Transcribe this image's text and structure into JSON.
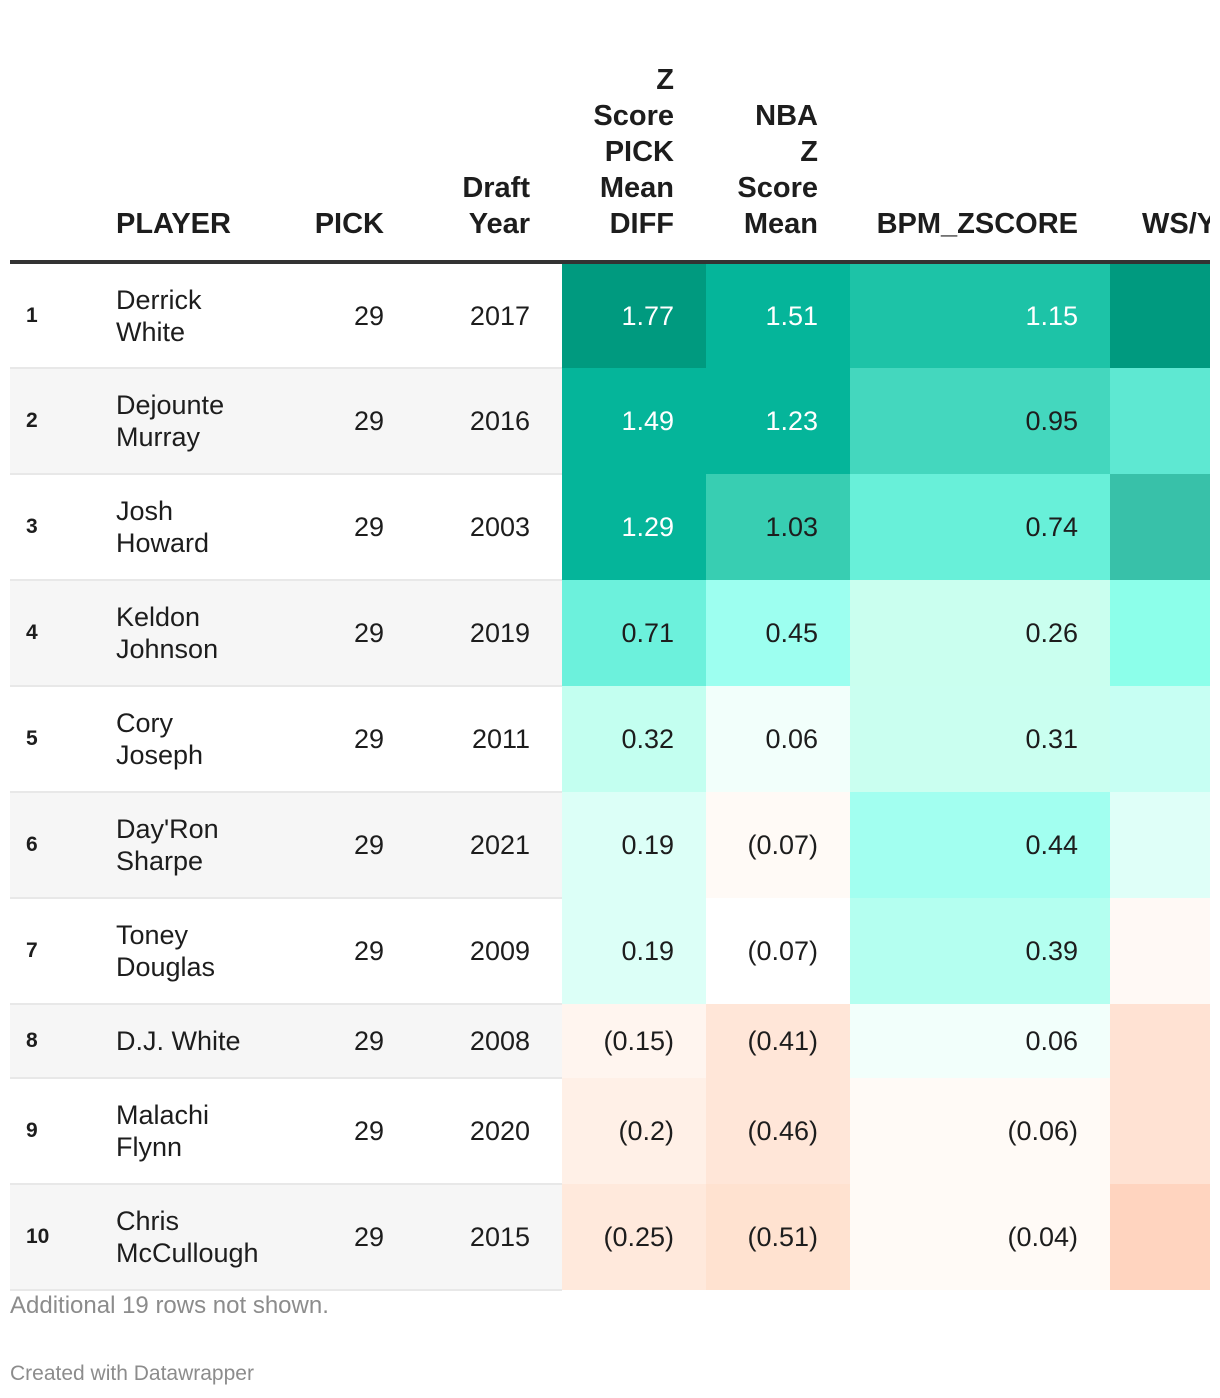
{
  "columns": {
    "rank": "",
    "player": "PLAYER",
    "pick": "PICK",
    "year": "Draft Year",
    "z_diff": "Z Score PICK Mean DIFF",
    "nba_z": "NBA Z Score Mean",
    "bpm": "BPM_ZSCORE",
    "ws": "WS/Y"
  },
  "rows": [
    {
      "rank": "1",
      "player": "Derrick White",
      "pick": "29",
      "year": "2017",
      "z_diff": "1.77",
      "nba_z": "1.51",
      "bpm": "1.15"
    },
    {
      "rank": "2",
      "player": "Dejounte Murray",
      "pick": "29",
      "year": "2016",
      "z_diff": "1.49",
      "nba_z": "1.23",
      "bpm": "0.95"
    },
    {
      "rank": "3",
      "player": "Josh Howard",
      "pick": "29",
      "year": "2003",
      "z_diff": "1.29",
      "nba_z": "1.03",
      "bpm": "0.74"
    },
    {
      "rank": "4",
      "player": "Keldon Johnson",
      "pick": "29",
      "year": "2019",
      "z_diff": "0.71",
      "nba_z": "0.45",
      "bpm": "0.26"
    },
    {
      "rank": "5",
      "player": "Cory Joseph",
      "pick": "29",
      "year": "2011",
      "z_diff": "0.32",
      "nba_z": "0.06",
      "bpm": "0.31"
    },
    {
      "rank": "6",
      "player": "Day'Ron Sharpe",
      "pick": "29",
      "year": "2021",
      "z_diff": "0.19",
      "nba_z": "(0.07)",
      "bpm": "0.44"
    },
    {
      "rank": "7",
      "player": "Toney Douglas",
      "pick": "29",
      "year": "2009",
      "z_diff": "0.19",
      "nba_z": "(0.07)",
      "bpm": "0.39"
    },
    {
      "rank": "8",
      "player": "D.J. White",
      "pick": "29",
      "year": "2008",
      "z_diff": "(0.15)",
      "nba_z": "(0.41)",
      "bpm": "0.06"
    },
    {
      "rank": "9",
      "player": "Malachi Flynn",
      "pick": "29",
      "year": "2020",
      "z_diff": "(0.2)",
      "nba_z": "(0.46)",
      "bpm": "(0.06)"
    },
    {
      "rank": "10",
      "player": "Chris McCullough",
      "pick": "29",
      "year": "2015",
      "z_diff": "(0.25)",
      "nba_z": "(0.51)",
      "bpm": "(0.04)"
    }
  ],
  "heat_colors": {
    "z_diff": [
      "#009a7f",
      "#05b59a",
      "#05b59a",
      "#6cf1dc",
      "#c3fff0",
      "#dcfff7",
      "#dcfff7",
      "#fff5ef",
      "#fff0e7",
      "#ffe9dc"
    ],
    "nba_z": [
      "#05b59a",
      "#05b59a",
      "#38ceb2",
      "#9dfff0",
      "#f2fffb",
      "#fffaf6",
      "#ffffff",
      "#ffe6d8",
      "#ffe6d8",
      "#ffe2d0"
    ],
    "bpm": [
      "#1dc3a7",
      "#44d7be",
      "#68f0d9",
      "#caffef",
      "#cafff0",
      "#a2fff0",
      "#b4fff0",
      "#f2fffb",
      "#fffaf6",
      "#fffaf6"
    ],
    "ws": [
      "#009a7f",
      "#5ee8d2",
      "#38c1a9",
      "#8cffea",
      "#c7fff3",
      "#dffff8",
      "#fff9f5",
      "#ffe2d3",
      "#ffe2d3",
      "#ffd4bf"
    ],
    "light_text": {
      "z_diff": [
        0,
        1,
        2
      ],
      "nba_z": [
        0,
        1
      ],
      "bpm": [
        0
      ]
    }
  },
  "footer": {
    "note": "Additional 19 rows not shown.",
    "credit": "Created with Datawrapper"
  }
}
